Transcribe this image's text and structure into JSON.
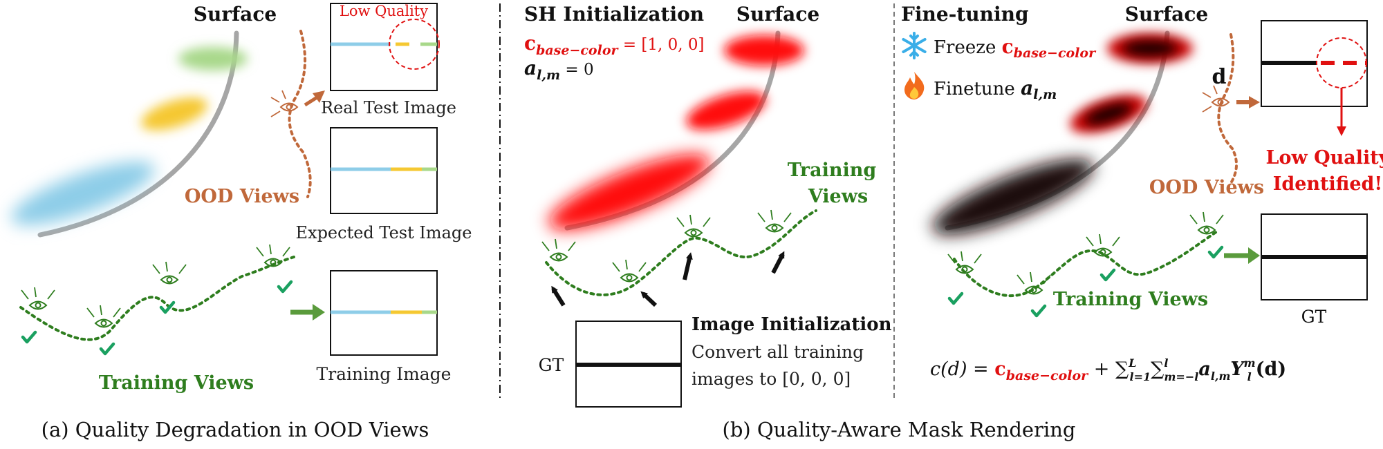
{
  "colors": {
    "ood": "#c0683a",
    "training": "#2e7d1e",
    "red": "#e01010",
    "blue": "#8ecde8",
    "yellow": "#f5c832",
    "green": "#a8d88a",
    "gray": "#a6a6a6"
  },
  "panel_a": {
    "surface_label": "Surface",
    "low_quality_label": "Low Quality",
    "real_test_label": "Real Test Image",
    "ood_views_label": "OOD Views",
    "expected_test_label": "Expected Test Image",
    "training_image_label": "Training Image",
    "training_views_label": "Training Views",
    "caption": "(a) Quality Degradation in OOD Views"
  },
  "panel_b": {
    "sh_init_title": "SH Initialization",
    "surface_label": "Surface",
    "base_color_symbol": "c",
    "base_color_sub": "base−color",
    "base_color_value": " = [1, 0, 0]",
    "a_symbol": "a",
    "a_sub": "l,m",
    "a_value": " = 0",
    "training_views_line1": "Training",
    "training_views_line2": "Views",
    "gt_label": "GT",
    "image_init_title": "Image Initialization",
    "image_init_line1": "Convert all training",
    "image_init_line2": "images to [0, 0, 0]",
    "caption": "(b) Quality-Aware Mask Rendering"
  },
  "panel_c": {
    "finetune_title": "Fine-tuning",
    "surface_label": "Surface",
    "freeze_icon": "snowflake-icon",
    "freeze_label": "Freeze ",
    "finetune_icon": "fire-icon",
    "finetune_label": "Finetune ",
    "d_label": "d",
    "low_quality_line1": "Low Quality",
    "low_quality_line2": "Identified!",
    "ood_views_label": "OOD Views",
    "training_views_label": "Training Views",
    "gt_label": "GT",
    "eq_lhs": "c(d) = ",
    "eq_base": "c",
    "eq_base_sub": "base−color",
    "eq_plus": " + ",
    "eq_sum": "∑",
    "eq_sum1_sub": "l=1",
    "eq_sum1_sup": "L",
    "eq_sum2_sub": "m=−l",
    "eq_sum2_sup": "l",
    "eq_a": "a",
    "eq_a_sub": "l,m",
    "eq_Y": "Y",
    "eq_Y_sub": "l",
    "eq_Y_sup": "m",
    "eq_tail": "(d)"
  }
}
